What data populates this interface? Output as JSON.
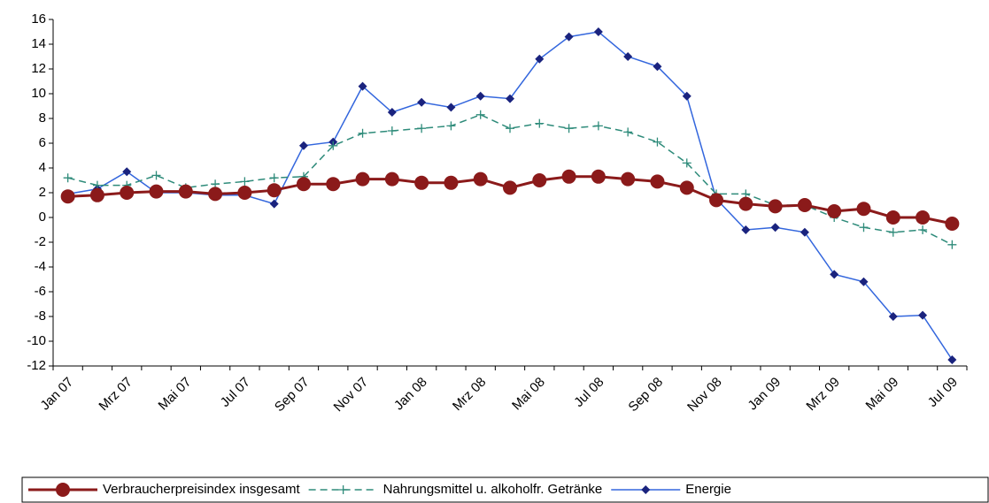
{
  "chart_data": {
    "type": "line",
    "categories": [
      "Jan 07",
      null,
      "Mrz 07",
      null,
      "Mai 07",
      null,
      "Jul 07",
      null,
      "Sep 07",
      null,
      "Nov 07",
      null,
      "Jan 08",
      null,
      "Mrz 08",
      null,
      "Mai 08",
      null,
      "Jul 08",
      null,
      "Sep 08",
      null,
      "Nov 08",
      null,
      "Jan 09",
      null,
      "Mrz 09",
      null,
      "Mai 09",
      null,
      "Jul 09"
    ],
    "series": [
      {
        "name": "Verbraucherpreisindex insgesamt",
        "color": "#8b1a1a",
        "marker": "circle",
        "values": [
          1.7,
          1.8,
          2.0,
          2.1,
          2.1,
          1.9,
          2.0,
          2.2,
          2.7,
          2.7,
          3.1,
          3.1,
          2.8,
          2.8,
          3.1,
          2.4,
          3.0,
          3.3,
          3.3,
          3.1,
          2.9,
          2.4,
          1.4,
          1.1,
          0.9,
          1.0,
          0.5,
          0.7,
          0.0,
          0.0,
          -0.5
        ]
      },
      {
        "name": "Nahrungsmittel u. alkoholfr. Getränke",
        "color": "#2e8b7a",
        "marker": "plus",
        "dashed": true,
        "values": [
          3.2,
          2.6,
          2.6,
          3.4,
          2.4,
          2.7,
          2.9,
          3.2,
          3.3,
          5.8,
          6.8,
          7.0,
          7.2,
          7.4,
          8.3,
          7.2,
          7.6,
          7.2,
          7.4,
          6.9,
          6.1,
          4.4,
          1.9,
          1.9,
          1.0,
          1.0,
          0.0,
          -0.8,
          -1.2,
          -1.0,
          -2.2
        ]
      },
      {
        "name": "Energie",
        "color": "#3366dd",
        "marker": "diamond",
        "marker_color": "#1a237e",
        "values": [
          1.9,
          2.3,
          3.7,
          2.0,
          2.0,
          1.8,
          1.8,
          1.1,
          5.8,
          6.1,
          10.6,
          8.5,
          9.3,
          8.9,
          9.8,
          9.6,
          12.8,
          14.6,
          15.0,
          13.0,
          12.2,
          9.8,
          1.5,
          -1.0,
          -0.8,
          -1.2,
          -4.6,
          -5.2,
          -8.0,
          -7.9,
          -11.5
        ]
      }
    ],
    "ylim": [
      -12,
      16
    ],
    "yticks": [
      -12,
      -10,
      -8,
      -6,
      -4,
      -2,
      0,
      2,
      4,
      6,
      8,
      10,
      12,
      14,
      16
    ],
    "grid": false,
    "legend": "bottom"
  }
}
